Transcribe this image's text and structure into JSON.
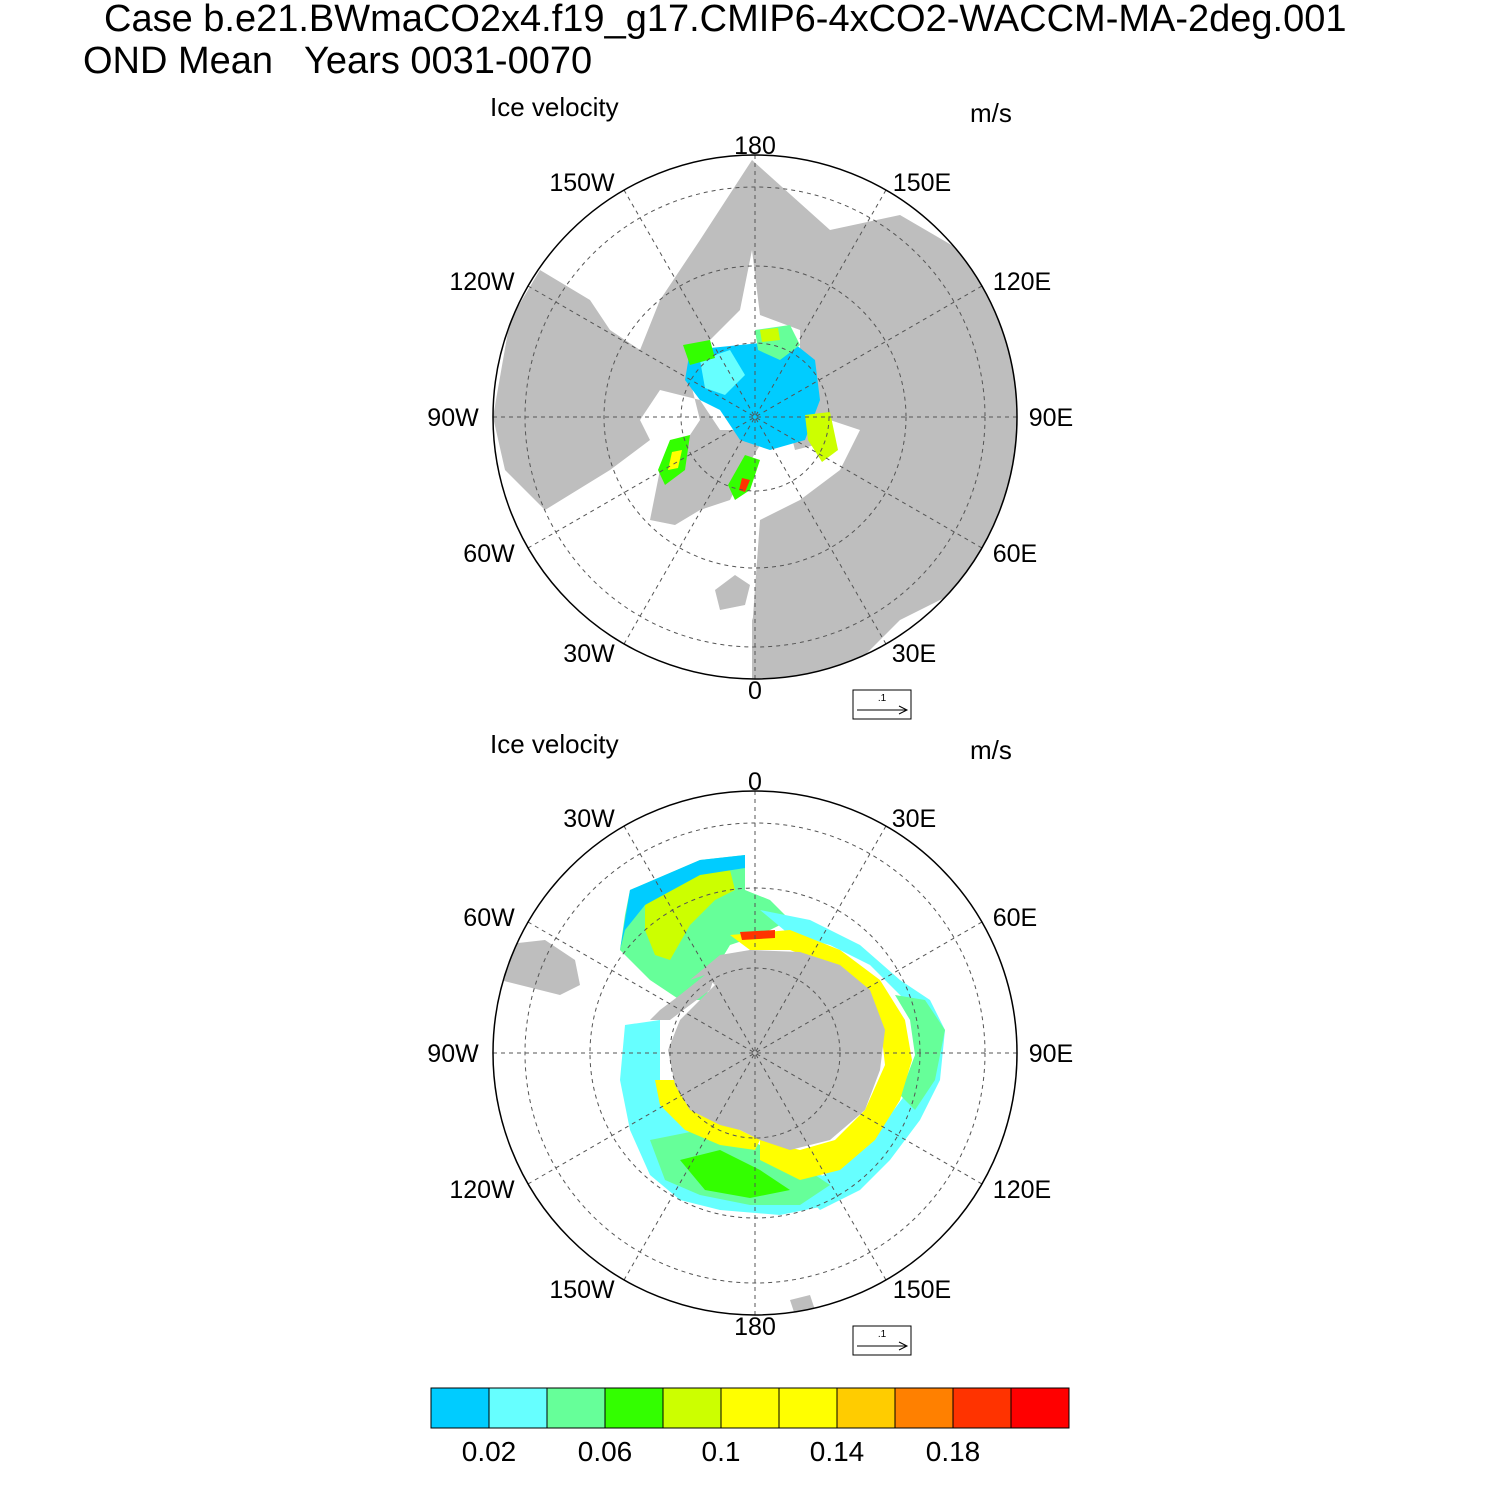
{
  "header": {
    "line1": "Case b.e21.BWmaCO2x4.f19_g17.CMIP6-4xCO2-WACCM-MA-2deg.001",
    "line2": "OND Mean   Years 0031-0070"
  },
  "colors": {
    "land": "#bebebe",
    "frame": "#000000",
    "grid": "#555555"
  },
  "chart_data": [
    {
      "type": "heatmap",
      "projection": "north-polar-stereographic",
      "title": "Ice velocity",
      "units": "m/s",
      "lon_labels": [
        "180",
        "150E",
        "120E",
        "90E",
        "60E",
        "30E",
        "0",
        "30W",
        "60W",
        "90W",
        "120W",
        "150W"
      ],
      "reference_vector": {
        "label": ".1",
        "value": 0.1
      }
    },
    {
      "type": "heatmap",
      "projection": "south-polar-stereographic",
      "title": "Ice velocity",
      "units": "m/s",
      "lon_labels": [
        "0",
        "30E",
        "60E",
        "90E",
        "120E",
        "150E",
        "180",
        "150W",
        "120W",
        "90W",
        "60W",
        "30W"
      ],
      "reference_vector": {
        "label": ".1",
        "value": 0.1
      }
    }
  ],
  "colorbar": {
    "colors": [
      "#00ccff",
      "#66ffff",
      "#66ff99",
      "#33ff00",
      "#ccff00",
      "#ffff00",
      "#ffff00",
      "#ffcc00",
      "#ff8000",
      "#ff3300",
      "#ff0000"
    ],
    "tick_labels": [
      "0.02",
      "0.06",
      "0.1",
      "0.14",
      "0.18"
    ],
    "tick_values": [
      0.02,
      0.06,
      0.1,
      0.14,
      0.18
    ],
    "min": 0.0,
    "max": 0.22
  }
}
